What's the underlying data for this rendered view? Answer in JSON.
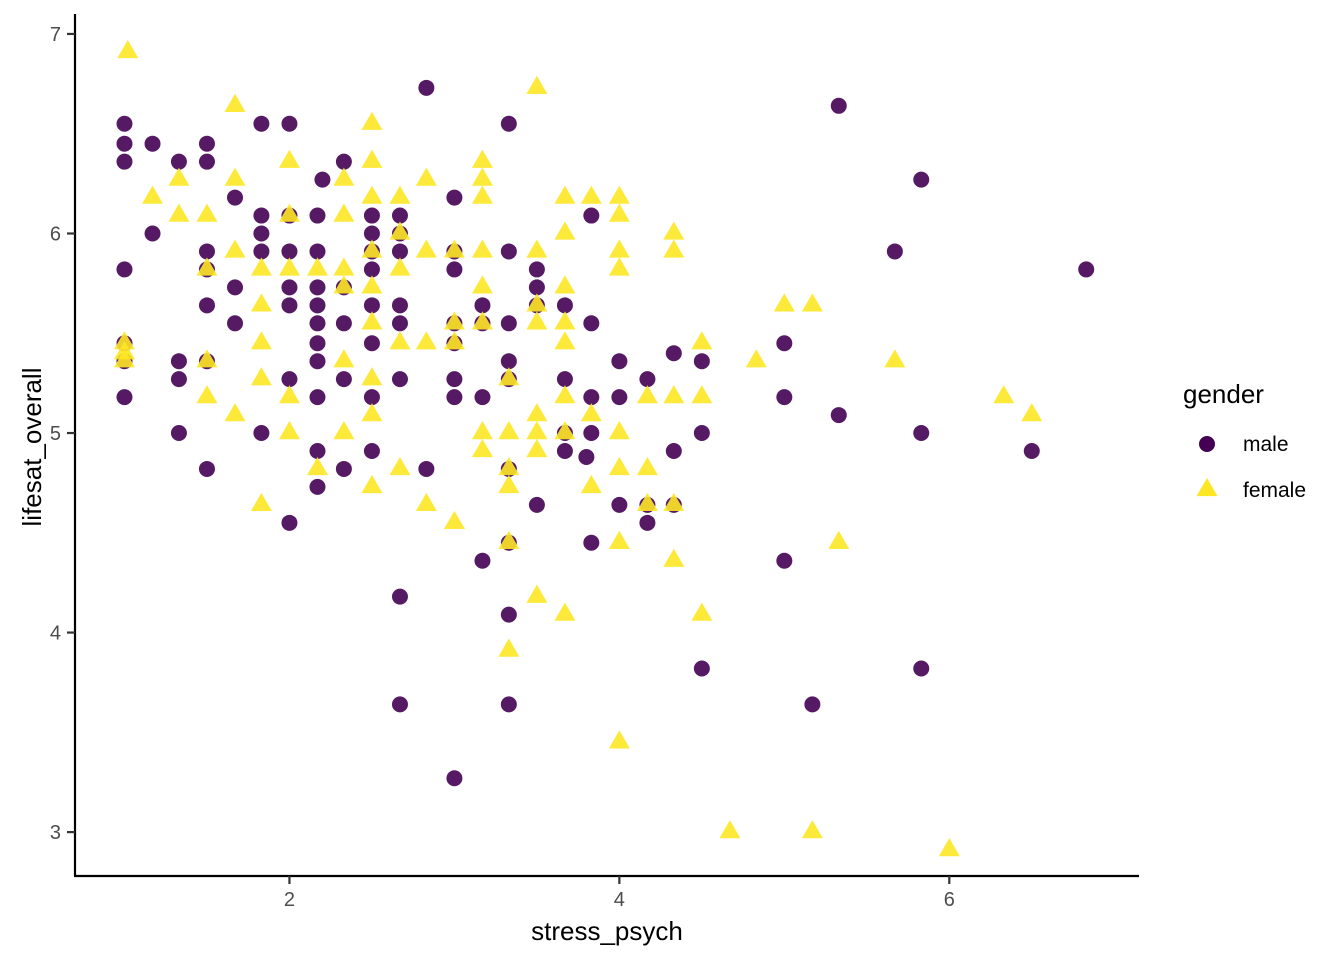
{
  "chart_data": {
    "type": "scatter",
    "xlabel": "stress_psych",
    "ylabel": "lifesat_overall",
    "xlim": [
      0.7,
      7.15
    ],
    "ylim": [
      2.78,
      7.1
    ],
    "xticks": [
      2,
      4,
      6
    ],
    "yticks": [
      3,
      4,
      5,
      6,
      7
    ],
    "xtick_labels": [
      "2",
      "4",
      "6"
    ],
    "ytick_labels": [
      "3",
      "4",
      "5",
      "6",
      "7"
    ],
    "grid": false,
    "legend": {
      "title": "gender",
      "placement": "right"
    },
    "series": [
      {
        "name": "male",
        "shape": "circle",
        "color": "#440154",
        "points": [
          [
            1.0,
            5.18
          ],
          [
            1.0,
            5.36
          ],
          [
            1.0,
            5.45
          ],
          [
            1.0,
            5.82
          ],
          [
            1.0,
            6.36
          ],
          [
            1.0,
            6.45
          ],
          [
            1.0,
            6.55
          ],
          [
            1.17,
            6.45
          ],
          [
            1.17,
            6.0
          ],
          [
            1.33,
            6.36
          ],
          [
            1.33,
            5.36
          ],
          [
            1.33,
            5.27
          ],
          [
            1.33,
            5.0
          ],
          [
            1.5,
            6.45
          ],
          [
            1.5,
            6.36
          ],
          [
            1.5,
            5.91
          ],
          [
            1.5,
            5.82
          ],
          [
            1.5,
            5.64
          ],
          [
            1.5,
            5.36
          ],
          [
            1.5,
            4.82
          ],
          [
            1.67,
            6.18
          ],
          [
            1.67,
            5.73
          ],
          [
            1.67,
            5.55
          ],
          [
            1.83,
            6.55
          ],
          [
            1.83,
            6.09
          ],
          [
            1.83,
            6.0
          ],
          [
            1.83,
            5.91
          ],
          [
            1.83,
            5.0
          ],
          [
            2.0,
            6.55
          ],
          [
            2.0,
            6.09
          ],
          [
            2.0,
            5.91
          ],
          [
            2.0,
            5.73
          ],
          [
            2.0,
            5.64
          ],
          [
            2.0,
            5.27
          ],
          [
            2.0,
            4.55
          ],
          [
            2.17,
            6.09
          ],
          [
            2.17,
            5.91
          ],
          [
            2.17,
            5.73
          ],
          [
            2.17,
            5.64
          ],
          [
            2.17,
            5.55
          ],
          [
            2.17,
            5.45
          ],
          [
            2.17,
            5.36
          ],
          [
            2.17,
            5.18
          ],
          [
            2.17,
            4.91
          ],
          [
            2.17,
            4.73
          ],
          [
            2.2,
            6.27
          ],
          [
            2.33,
            6.36
          ],
          [
            2.33,
            5.73
          ],
          [
            2.33,
            5.55
          ],
          [
            2.33,
            5.27
          ],
          [
            2.33,
            4.82
          ],
          [
            2.5,
            6.09
          ],
          [
            2.5,
            6.0
          ],
          [
            2.5,
            5.91
          ],
          [
            2.5,
            5.82
          ],
          [
            2.5,
            5.64
          ],
          [
            2.5,
            5.45
          ],
          [
            2.5,
            5.18
          ],
          [
            2.5,
            4.91
          ],
          [
            2.67,
            6.09
          ],
          [
            2.67,
            6.0
          ],
          [
            2.67,
            5.91
          ],
          [
            2.67,
            5.64
          ],
          [
            2.67,
            5.55
          ],
          [
            2.67,
            5.27
          ],
          [
            2.67,
            4.18
          ],
          [
            2.67,
            3.64
          ],
          [
            2.83,
            6.73
          ],
          [
            2.83,
            4.82
          ],
          [
            3.0,
            6.18
          ],
          [
            3.0,
            5.91
          ],
          [
            3.0,
            5.82
          ],
          [
            3.0,
            5.55
          ],
          [
            3.0,
            5.45
          ],
          [
            3.0,
            5.27
          ],
          [
            3.0,
            5.18
          ],
          [
            3.0,
            3.27
          ],
          [
            3.17,
            5.64
          ],
          [
            3.17,
            5.55
          ],
          [
            3.17,
            5.18
          ],
          [
            3.17,
            4.36
          ],
          [
            3.33,
            6.55
          ],
          [
            3.33,
            5.91
          ],
          [
            3.33,
            5.55
          ],
          [
            3.33,
            5.36
          ],
          [
            3.33,
            5.27
          ],
          [
            3.33,
            4.82
          ],
          [
            3.33,
            4.45
          ],
          [
            3.33,
            4.09
          ],
          [
            3.33,
            3.64
          ],
          [
            3.5,
            5.82
          ],
          [
            3.5,
            5.73
          ],
          [
            3.5,
            5.64
          ],
          [
            3.5,
            4.64
          ],
          [
            3.67,
            5.64
          ],
          [
            3.67,
            5.27
          ],
          [
            3.67,
            5.0
          ],
          [
            3.67,
            4.91
          ],
          [
            3.83,
            6.09
          ],
          [
            3.83,
            5.55
          ],
          [
            3.83,
            5.18
          ],
          [
            3.83,
            5.0
          ],
          [
            3.83,
            4.45
          ],
          [
            3.8,
            4.88
          ],
          [
            4.0,
            5.36
          ],
          [
            4.0,
            5.18
          ],
          [
            4.0,
            4.64
          ],
          [
            4.17,
            5.27
          ],
          [
            4.17,
            4.64
          ],
          [
            4.17,
            4.55
          ],
          [
            4.33,
            5.4
          ],
          [
            4.33,
            4.91
          ],
          [
            4.33,
            4.64
          ],
          [
            4.5,
            5.36
          ],
          [
            4.5,
            5.0
          ],
          [
            4.5,
            3.82
          ],
          [
            5.0,
            5.45
          ],
          [
            5.0,
            5.18
          ],
          [
            5.0,
            4.36
          ],
          [
            5.17,
            3.64
          ],
          [
            5.33,
            6.64
          ],
          [
            5.33,
            5.09
          ],
          [
            5.67,
            5.91
          ],
          [
            5.83,
            6.27
          ],
          [
            5.83,
            5.0
          ],
          [
            5.83,
            3.82
          ],
          [
            6.5,
            4.91
          ],
          [
            6.83,
            5.82
          ]
        ]
      },
      {
        "name": "female",
        "shape": "triangle",
        "color": "#fde725",
        "points": [
          [
            1.0,
            5.45
          ],
          [
            1.0,
            5.36
          ],
          [
            1.0,
            5.4
          ],
          [
            1.02,
            6.91
          ],
          [
            1.17,
            6.18
          ],
          [
            1.33,
            6.27
          ],
          [
            1.33,
            6.09
          ],
          [
            1.5,
            6.09
          ],
          [
            1.5,
            5.82
          ],
          [
            1.5,
            5.36
          ],
          [
            1.5,
            5.18
          ],
          [
            1.67,
            6.64
          ],
          [
            1.67,
            6.27
          ],
          [
            1.67,
            5.91
          ],
          [
            1.67,
            5.09
          ],
          [
            1.83,
            5.82
          ],
          [
            1.83,
            5.64
          ],
          [
            1.83,
            5.45
          ],
          [
            1.83,
            5.27
          ],
          [
            1.83,
            4.64
          ],
          [
            2.0,
            6.36
          ],
          [
            2.0,
            6.09
          ],
          [
            2.0,
            5.82
          ],
          [
            2.0,
            5.18
          ],
          [
            2.0,
            5.0
          ],
          [
            2.17,
            5.82
          ],
          [
            2.17,
            4.82
          ],
          [
            2.33,
            6.27
          ],
          [
            2.33,
            6.09
          ],
          [
            2.33,
            5.82
          ],
          [
            2.33,
            5.73
          ],
          [
            2.33,
            5.36
          ],
          [
            2.33,
            5.0
          ],
          [
            2.5,
            6.55
          ],
          [
            2.5,
            6.36
          ],
          [
            2.5,
            6.18
          ],
          [
            2.5,
            5.91
          ],
          [
            2.5,
            5.73
          ],
          [
            2.5,
            5.55
          ],
          [
            2.5,
            5.27
          ],
          [
            2.5,
            5.09
          ],
          [
            2.5,
            4.73
          ],
          [
            2.67,
            6.18
          ],
          [
            2.67,
            6.0
          ],
          [
            2.67,
            5.82
          ],
          [
            2.67,
            5.45
          ],
          [
            2.67,
            4.82
          ],
          [
            2.83,
            6.27
          ],
          [
            2.83,
            5.91
          ],
          [
            2.83,
            5.45
          ],
          [
            2.83,
            4.64
          ],
          [
            3.0,
            5.91
          ],
          [
            3.0,
            5.55
          ],
          [
            3.0,
            5.45
          ],
          [
            3.0,
            4.55
          ],
          [
            3.17,
            6.36
          ],
          [
            3.17,
            6.27
          ],
          [
            3.17,
            6.18
          ],
          [
            3.17,
            5.91
          ],
          [
            3.17,
            5.73
          ],
          [
            3.17,
            5.55
          ],
          [
            3.17,
            5.0
          ],
          [
            3.17,
            4.91
          ],
          [
            3.33,
            5.27
          ],
          [
            3.33,
            5.0
          ],
          [
            3.33,
            4.82
          ],
          [
            3.33,
            4.73
          ],
          [
            3.33,
            4.45
          ],
          [
            3.33,
            3.91
          ],
          [
            3.5,
            6.73
          ],
          [
            3.5,
            5.91
          ],
          [
            3.5,
            5.64
          ],
          [
            3.5,
            5.55
          ],
          [
            3.5,
            5.09
          ],
          [
            3.5,
            5.0
          ],
          [
            3.5,
            4.91
          ],
          [
            3.5,
            4.18
          ],
          [
            3.67,
            6.18
          ],
          [
            3.67,
            6.0
          ],
          [
            3.67,
            5.73
          ],
          [
            3.67,
            5.55
          ],
          [
            3.67,
            5.45
          ],
          [
            3.67,
            5.18
          ],
          [
            3.67,
            5.0
          ],
          [
            3.67,
            4.09
          ],
          [
            3.83,
            6.18
          ],
          [
            3.83,
            5.09
          ],
          [
            3.83,
            4.73
          ],
          [
            4.0,
            6.18
          ],
          [
            4.0,
            6.09
          ],
          [
            4.0,
            5.91
          ],
          [
            4.0,
            5.82
          ],
          [
            4.0,
            5.0
          ],
          [
            4.0,
            4.82
          ],
          [
            4.0,
            4.45
          ],
          [
            4.0,
            3.45
          ],
          [
            4.17,
            5.18
          ],
          [
            4.17,
            4.82
          ],
          [
            4.17,
            4.64
          ],
          [
            4.33,
            6.0
          ],
          [
            4.33,
            5.91
          ],
          [
            4.33,
            5.18
          ],
          [
            4.33,
            4.64
          ],
          [
            4.33,
            4.36
          ],
          [
            4.5,
            5.45
          ],
          [
            4.5,
            5.18
          ],
          [
            4.5,
            4.09
          ],
          [
            4.67,
            3.0
          ],
          [
            4.83,
            5.36
          ],
          [
            5.0,
            5.64
          ],
          [
            5.17,
            5.64
          ],
          [
            5.17,
            3.0
          ],
          [
            5.33,
            4.45
          ],
          [
            5.67,
            5.36
          ],
          [
            6.0,
            2.91
          ],
          [
            6.33,
            5.18
          ],
          [
            6.5,
            5.09
          ]
        ]
      }
    ]
  }
}
